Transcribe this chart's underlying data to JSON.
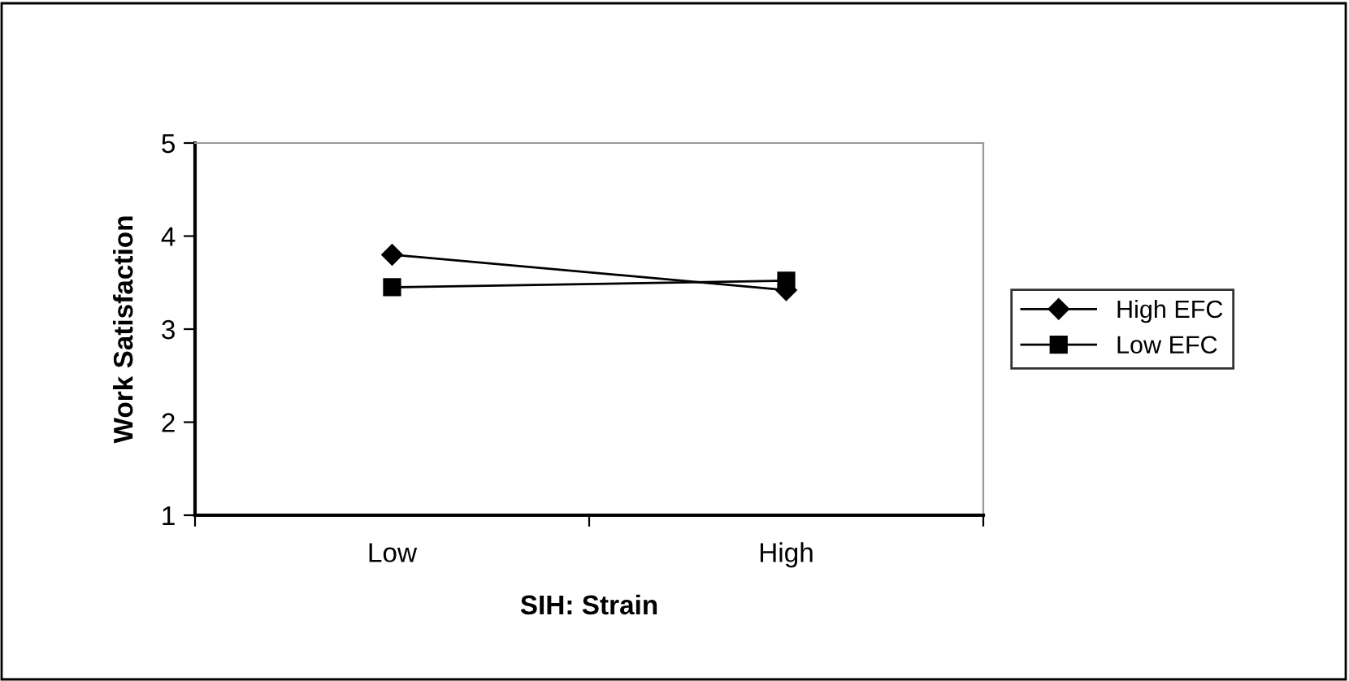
{
  "chart_data": {
    "type": "line",
    "xlabel": "SIH: Strain",
    "ylabel": "Work Satisfaction",
    "categories": [
      "Low",
      "High"
    ],
    "series": [
      {
        "name": "High EFC",
        "color": "#000000",
        "values": [
          3.8,
          3.42
        ],
        "marker": "diamond"
      },
      {
        "name": "Low EFC",
        "color": "#000000",
        "values": [
          3.45,
          3.52
        ],
        "marker": "square"
      }
    ],
    "ylim": [
      1,
      5
    ],
    "yticks": [
      1,
      2,
      3,
      4,
      5
    ],
    "grid": false,
    "legend": "right",
    "line_style": "solid"
  }
}
